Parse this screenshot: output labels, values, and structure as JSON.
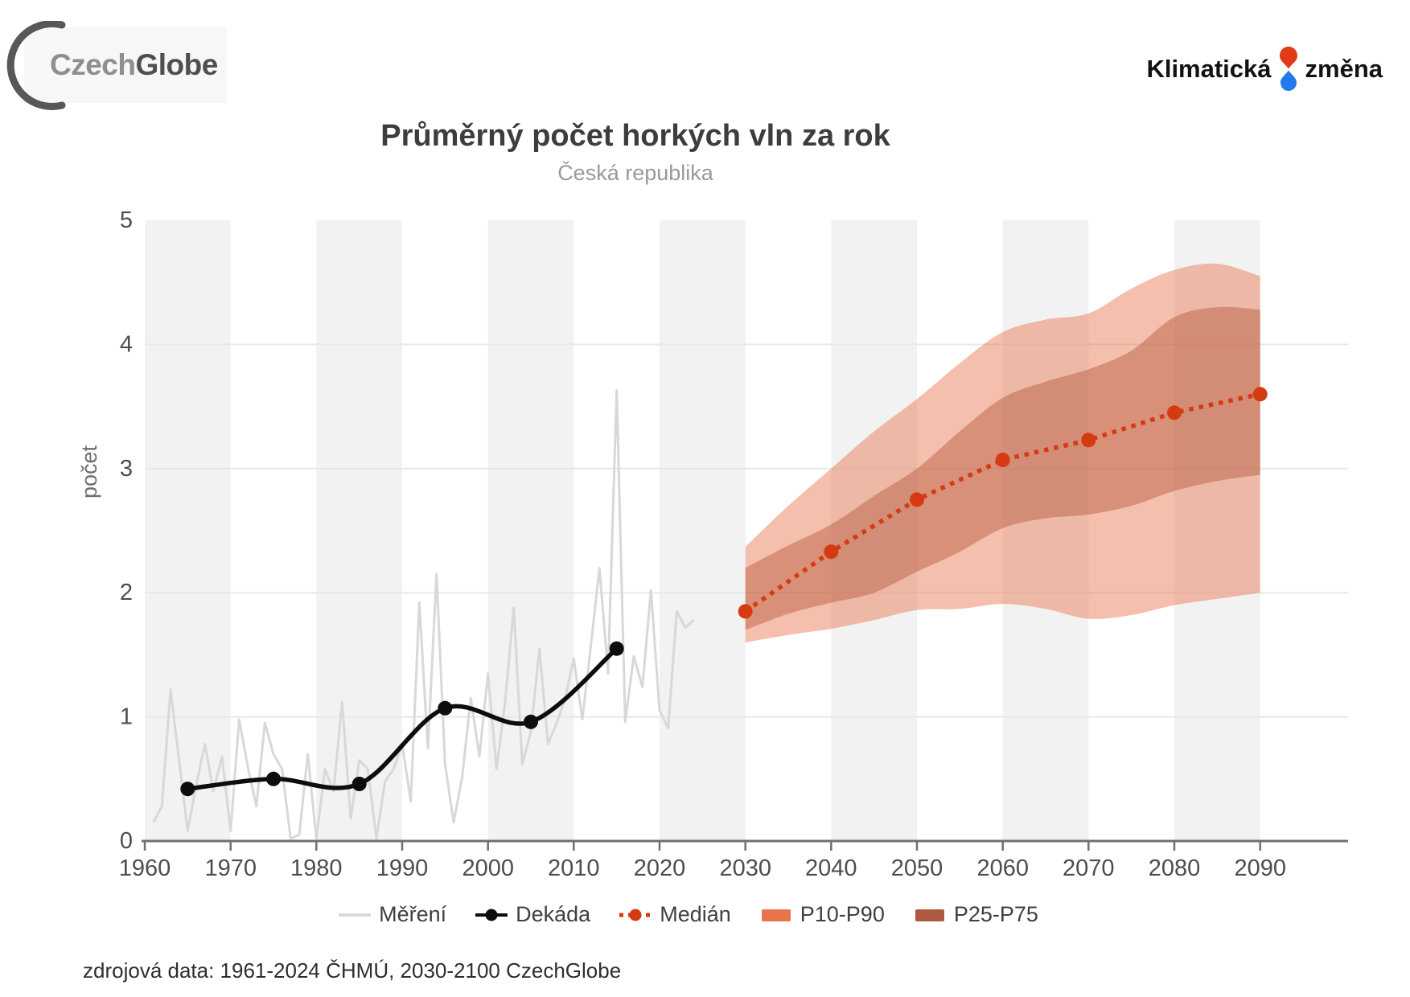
{
  "header": {
    "czechglobe_logo": {
      "part1": "Czech",
      "part2": "Globe"
    },
    "klimaticka_logo": {
      "word1": "Klimatická",
      "word2": "změna"
    }
  },
  "title": "Průměrný počet horkých vln za rok",
  "subtitle": "Česká republika",
  "source_note": "zdrojová data: 1961-2024 ČHMÚ, 2030-2100 CzechGlobe",
  "colors": {
    "stripe": "#f2f2f2",
    "grid": "#e8e8e8",
    "axis": "#707070",
    "tick_text": "#4d4d4d",
    "axis_title": "#6e6e6e",
    "measure_line": "#d8d8d8",
    "decade_line": "#0d0d0d",
    "median_line": "#d63a12",
    "band_p10_fill": "#e8764e",
    "band_p25_fill": "#b14f32",
    "legend_swatch_p10": "#e8744b",
    "legend_swatch_p25": "#ae5a42",
    "logo_red": "#e03c18",
    "logo_blue": "#2479ec"
  },
  "chart_data": {
    "type": "line",
    "title": "Průměrný počet horkých vln za rok",
    "subtitle": "Česká republika",
    "xlabel": "",
    "ylabel": "počet",
    "ylim": [
      0,
      5
    ],
    "xlim": [
      1960,
      2100
    ],
    "yticks": [
      0,
      1,
      2,
      3,
      4,
      5
    ],
    "xticks": [
      1960,
      1970,
      1980,
      1990,
      2000,
      2010,
      2020,
      2030,
      2040,
      2050,
      2060,
      2070,
      2080,
      2090
    ],
    "shaded_decades": [
      1960,
      1980,
      2000,
      2020,
      2040,
      2060,
      2080
    ],
    "grid": true,
    "legend_position": "bottom",
    "series": [
      {
        "name": "Měření",
        "type": "line",
        "smooth": false,
        "markers": false,
        "x_start": 1961,
        "x_step": 1,
        "values": [
          0.15,
          0.28,
          1.22,
          0.65,
          0.08,
          0.45,
          0.78,
          0.4,
          0.68,
          0.08,
          0.98,
          0.6,
          0.28,
          0.95,
          0.7,
          0.58,
          0.02,
          0.05,
          0.7,
          0.02,
          0.58,
          0.4,
          1.12,
          0.18,
          0.65,
          0.58,
          0.02,
          0.48,
          0.58,
          0.78,
          0.32,
          1.92,
          0.75,
          2.15,
          0.62,
          0.15,
          0.52,
          1.15,
          0.68,
          1.35,
          0.58,
          1.12,
          1.88,
          0.62,
          0.88,
          1.55,
          0.78,
          0.95,
          1.15,
          1.47,
          0.98,
          1.58,
          2.2,
          1.35,
          3.63,
          0.96,
          1.49,
          1.24,
          2.02,
          1.05,
          0.91,
          1.85,
          1.72,
          1.78
        ]
      },
      {
        "name": "Dekáda",
        "type": "line",
        "smooth": true,
        "markers": true,
        "x": [
          1965,
          1975,
          1985,
          1995,
          2005,
          2015
        ],
        "values": [
          0.42,
          0.5,
          0.46,
          1.07,
          0.96,
          1.55
        ]
      },
      {
        "name": "Medián",
        "type": "dotted-line",
        "smooth": false,
        "markers": true,
        "x": [
          2030,
          2040,
          2050,
          2060,
          2070,
          2080,
          2090
        ],
        "values": [
          1.85,
          2.33,
          2.75,
          3.07,
          3.23,
          3.45,
          3.6
        ]
      },
      {
        "name": "P10-P90",
        "type": "band",
        "x": [
          2030,
          2035,
          2040,
          2045,
          2050,
          2055,
          2060,
          2065,
          2070,
          2075,
          2080,
          2085,
          2090
        ],
        "high": [
          2.37,
          2.7,
          3.0,
          3.3,
          3.56,
          3.85,
          4.1,
          4.2,
          4.25,
          4.45,
          4.6,
          4.65,
          4.55
        ],
        "low": [
          1.6,
          1.66,
          1.71,
          1.78,
          1.86,
          1.87,
          1.91,
          1.87,
          1.79,
          1.82,
          1.9,
          1.95,
          2.0
        ]
      },
      {
        "name": "P25-P75",
        "type": "band",
        "x": [
          2030,
          2035,
          2040,
          2045,
          2050,
          2055,
          2060,
          2065,
          2070,
          2075,
          2080,
          2085,
          2090
        ],
        "high": [
          2.2,
          2.38,
          2.55,
          2.78,
          3.0,
          3.3,
          3.57,
          3.7,
          3.8,
          3.95,
          4.22,
          4.3,
          4.28
        ],
        "low": [
          1.7,
          1.83,
          1.92,
          2.0,
          2.17,
          2.33,
          2.52,
          2.6,
          2.63,
          2.7,
          2.82,
          2.9,
          2.95
        ]
      }
    ],
    "legend": [
      {
        "label": "Měření",
        "marker": "line"
      },
      {
        "label": "Dekáda",
        "marker": "line-dot"
      },
      {
        "label": "Medián",
        "marker": "dotted-dot"
      },
      {
        "label": "P10-P90",
        "marker": "swatch-p10"
      },
      {
        "label": "P25-P75",
        "marker": "swatch-p25"
      }
    ]
  }
}
